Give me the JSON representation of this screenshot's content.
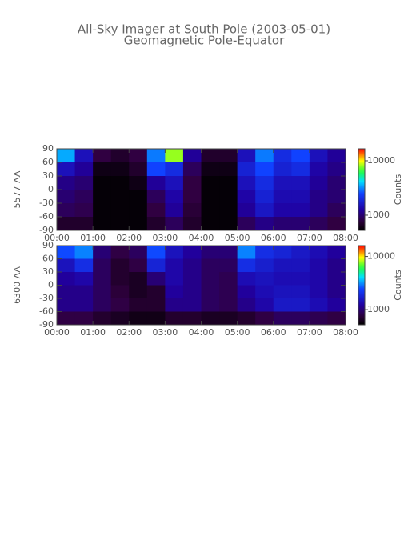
{
  "chart_data": [
    {
      "type": "heatmap",
      "title": "All-Sky Imager at South Pole (2003-05-01)",
      "subtitle": "Geomagnetic Pole-Equator",
      "ylabel": "5577 AA",
      "colorbar_label": "Counts",
      "xlim": [
        0,
        8
      ],
      "ylim": [
        -90,
        90
      ],
      "xticks": [
        {
          "value": 0,
          "label": "00:00"
        },
        {
          "value": 1,
          "label": "01:00"
        },
        {
          "value": 2,
          "label": "02:00"
        },
        {
          "value": 3,
          "label": "03:00"
        },
        {
          "value": 4,
          "label": "04:00"
        },
        {
          "value": 5,
          "label": "05:00"
        },
        {
          "value": 6,
          "label": "06:00"
        },
        {
          "value": 7,
          "label": "07:00"
        },
        {
          "value": 8,
          "label": "08:00"
        }
      ],
      "yticks": [
        90,
        60,
        30,
        0,
        -30,
        -60,
        -90
      ],
      "zlim": [
        525,
        16600
      ],
      "zticks": [
        1000,
        10000
      ],
      "log_color": true,
      "z": [
        [
          3500,
          1500,
          800,
          700,
          800,
          3000,
          8000,
          1200,
          700,
          700,
          1500,
          3000,
          2000,
          2500,
          1500,
          1200
        ],
        [
          1500,
          1200,
          600,
          600,
          700,
          2500,
          2000,
          900,
          600,
          600,
          1800,
          2500,
          1800,
          2000,
          1300,
          1100
        ],
        [
          1100,
          1000,
          550,
          550,
          600,
          1200,
          1500,
          800,
          550,
          550,
          1500,
          2000,
          1500,
          1500,
          1200,
          1000
        ],
        [
          1000,
          900,
          550,
          550,
          550,
          900,
          1300,
          800,
          550,
          550,
          1300,
          1800,
          1400,
          1400,
          1100,
          1000
        ],
        [
          900,
          850,
          550,
          550,
          550,
          800,
          1200,
          750,
          550,
          550,
          1200,
          1600,
          1300,
          1300,
          1100,
          900
        ],
        [
          700,
          700,
          550,
          550,
          550,
          700,
          900,
          700,
          550,
          550,
          900,
          1100,
          1000,
          1000,
          900,
          800
        ]
      ]
    },
    {
      "type": "heatmap",
      "ylabel": "6300 AA",
      "colorbar_label": "Counts",
      "xlim": [
        0,
        8
      ],
      "ylim": [
        -90,
        90
      ],
      "xticks": [
        {
          "value": 0,
          "label": "00:00"
        },
        {
          "value": 1,
          "label": "01:00"
        },
        {
          "value": 2,
          "label": "02:00"
        },
        {
          "value": 3,
          "label": "03:00"
        },
        {
          "value": 4,
          "label": "04:00"
        },
        {
          "value": 5,
          "label": "05:00"
        },
        {
          "value": 6,
          "label": "06:00"
        },
        {
          "value": 7,
          "label": "07:00"
        },
        {
          "value": 8,
          "label": "08:00"
        }
      ],
      "yticks": [
        90,
        60,
        30,
        0,
        -30,
        -60,
        -90
      ],
      "zlim": [
        520,
        16000
      ],
      "zticks": [
        1000,
        10000
      ],
      "log_color": true,
      "z": [
        [
          2500,
          3000,
          1000,
          800,
          900,
          2500,
          1500,
          1200,
          1000,
          1000,
          3000,
          2000,
          1800,
          1600,
          1400,
          1200
        ],
        [
          1500,
          2000,
          900,
          700,
          800,
          1800,
          1300,
          1100,
          900,
          900,
          2000,
          1700,
          1500,
          1500,
          1300,
          1100
        ],
        [
          1200,
          1300,
          900,
          700,
          650,
          1000,
          1300,
          1100,
          900,
          850,
          1400,
          1500,
          1400,
          1400,
          1300,
          1100
        ],
        [
          1100,
          1100,
          900,
          750,
          650,
          700,
          1200,
          1100,
          900,
          850,
          1200,
          1400,
          1500,
          1500,
          1300,
          1100
        ],
        [
          1100,
          1100,
          900,
          800,
          700,
          700,
          1100,
          1100,
          900,
          850,
          1100,
          1300,
          1600,
          1600,
          1400,
          1200
        ],
        [
          800,
          800,
          700,
          650,
          600,
          600,
          700,
          700,
          650,
          650,
          700,
          800,
          900,
          900,
          850,
          800
        ]
      ]
    }
  ]
}
